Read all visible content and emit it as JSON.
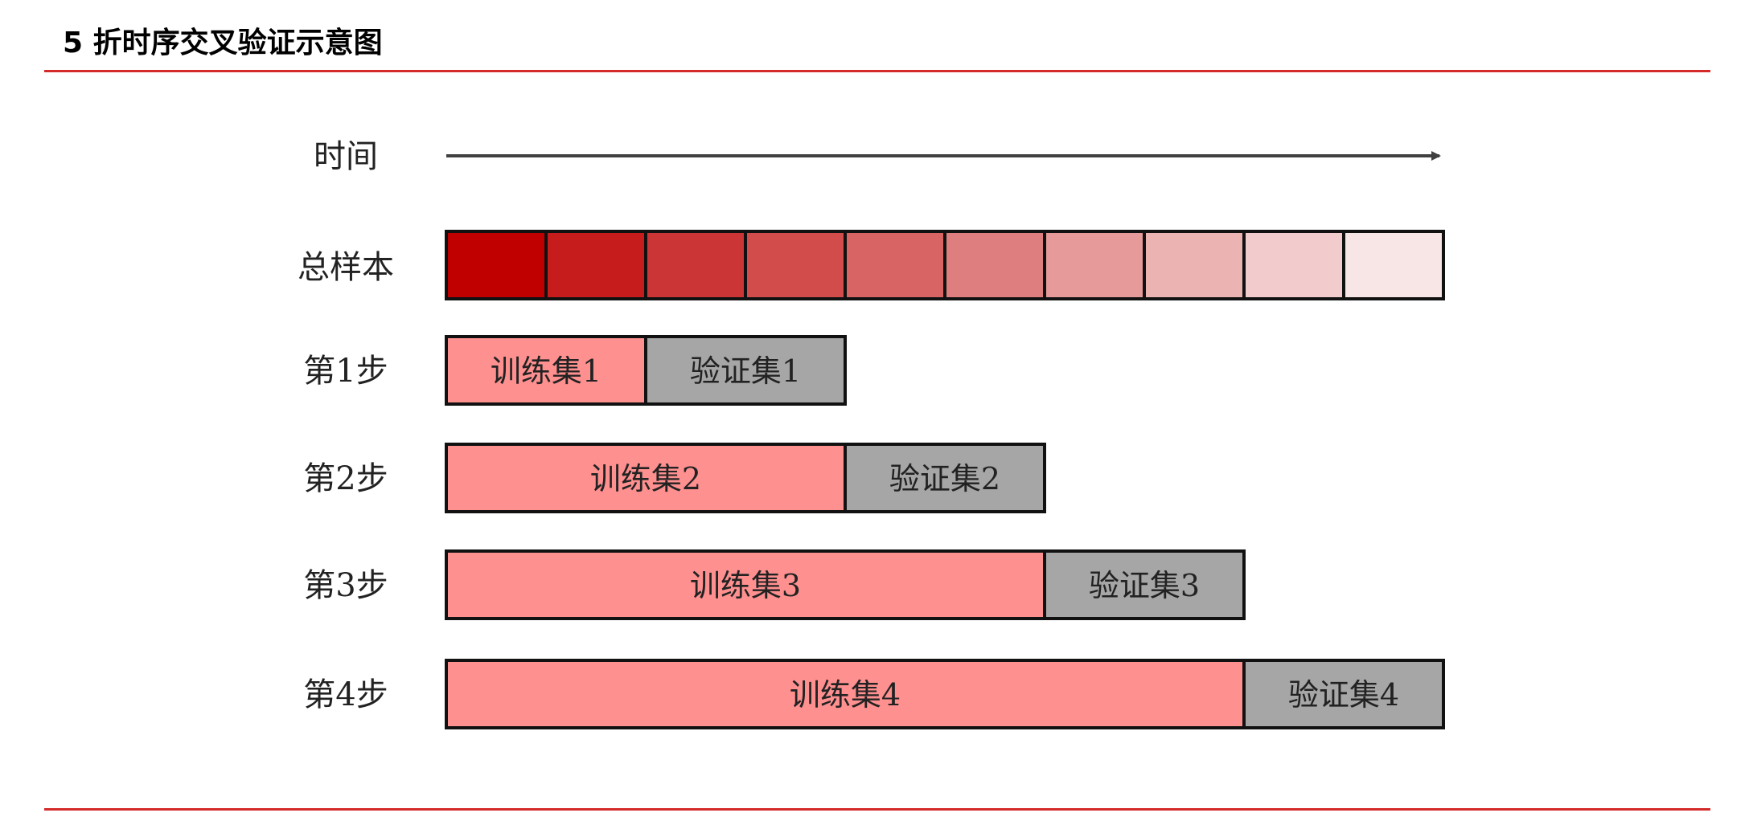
{
  "header": {
    "title": "5 折时序交叉验证示意图"
  },
  "diagram": {
    "time_label": "时间",
    "sample_label": "总样本",
    "sample_segments": 10,
    "colors": {
      "accent_rule": "#d42a2a",
      "train": "#ff9090",
      "validation": "#a6a6a6",
      "outline": "#111111",
      "arrow": "#404040",
      "sample_gradient": [
        "#c00000",
        "#c61c1c",
        "#cc3535",
        "#d24c4c",
        "#d86464",
        "#de7e7e",
        "#e69a9a",
        "#ecb3b3",
        "#f2cccc",
        "#f8e5e5"
      ]
    },
    "steps": [
      {
        "label": "第1步",
        "train_label": "训练集1",
        "train_units": 2,
        "val_label": "验证集1",
        "val_units": 2
      },
      {
        "label": "第2步",
        "train_label": "训练集2",
        "train_units": 4,
        "val_label": "验证集2",
        "val_units": 2
      },
      {
        "label": "第3步",
        "train_label": "训练集3",
        "train_units": 6,
        "val_label": "验证集3",
        "val_units": 2
      },
      {
        "label": "第4步",
        "train_label": "训练集4",
        "train_units": 8,
        "val_label": "验证集4",
        "val_units": 2
      }
    ]
  }
}
